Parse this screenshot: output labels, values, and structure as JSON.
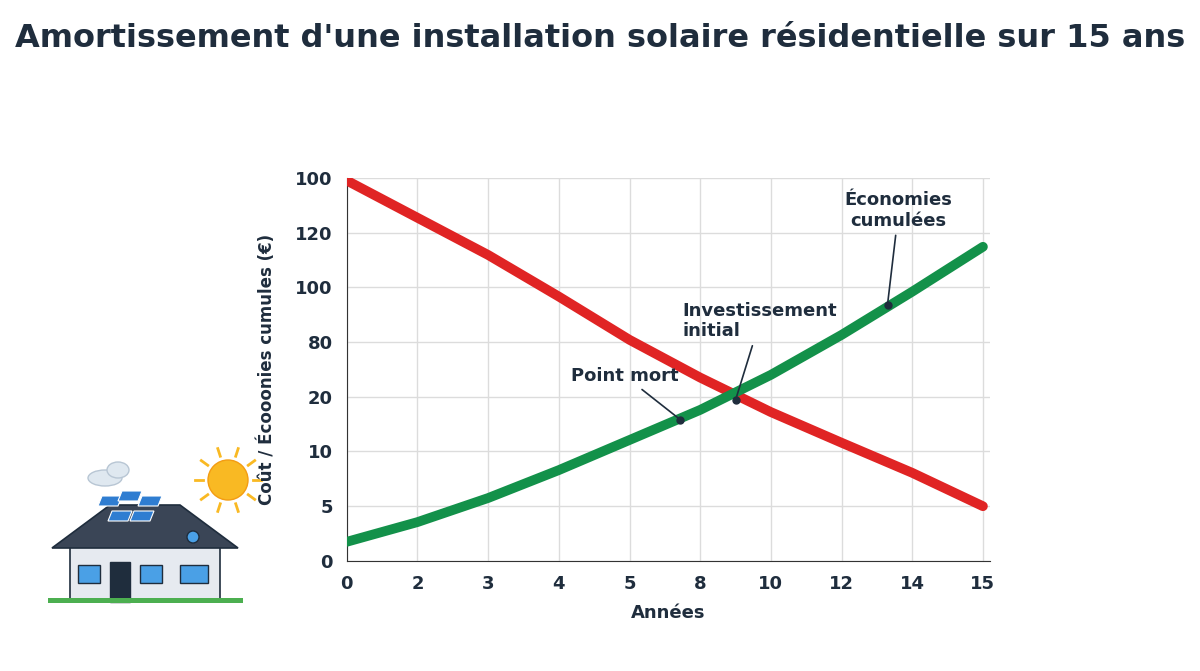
{
  "chart_data": {
    "type": "line",
    "title": "Amortissement d'une installation solaire résidentielle sur 15 ans",
    "x_label": "Années",
    "y_label": "Coût / Écooonies cumules (€)",
    "categories": [
      "0",
      "2",
      "3",
      "4",
      "5",
      "8",
      "10",
      "12",
      "14",
      "15"
    ],
    "y_categories": [
      "0",
      "5",
      "10",
      "20",
      "80",
      "100",
      "120",
      "100"
    ],
    "ylim": [
      0,
      7
    ],
    "grid": true,
    "series": [
      {
        "name": "Investissement initial",
        "color": "#e02424",
        "values": [
          6.95,
          6.27,
          5.59,
          4.83,
          4.04,
          3.35,
          2.72,
          2.16,
          1.61,
          1.0
        ]
      },
      {
        "name": "Économies cumulées",
        "color": "#13914a",
        "values": [
          0.35,
          0.71,
          1.15,
          1.66,
          2.21,
          2.76,
          3.4,
          4.13,
          4.92,
          5.74
        ]
      }
    ],
    "annotations": [
      {
        "text": "Point mort",
        "x": 4.72,
        "y": 2.58
      },
      {
        "text": "Investissement\ninitial",
        "x": 5.5,
        "y": 2.94
      },
      {
        "text": "Économies\ncumulées",
        "x": 7.65,
        "y": 4.68
      }
    ]
  }
}
